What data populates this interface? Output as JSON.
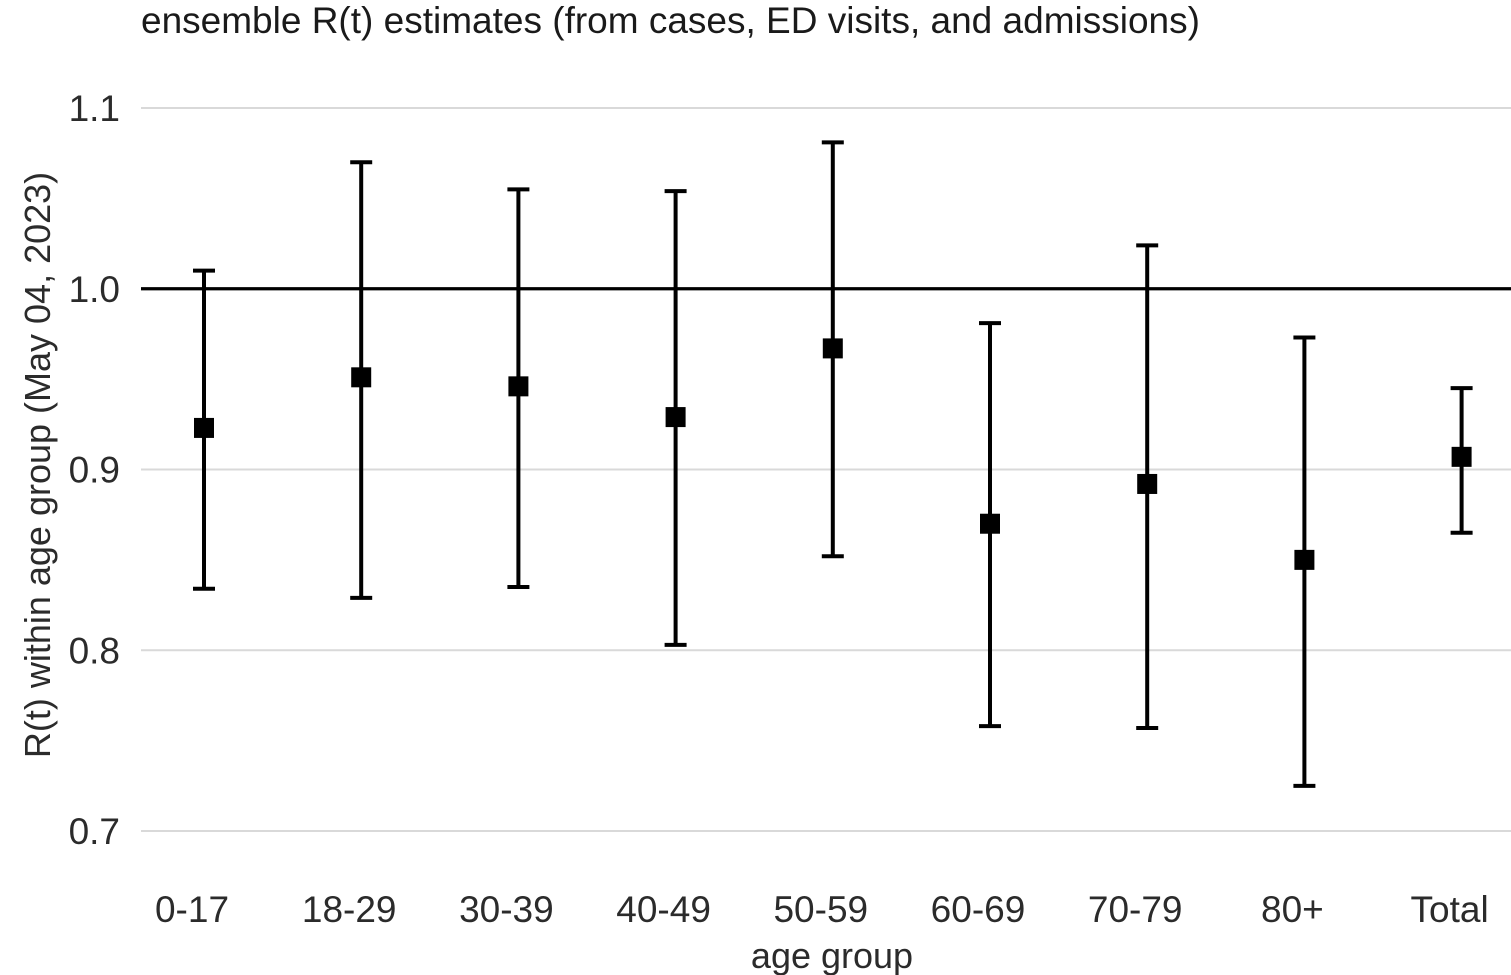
{
  "chart_data": {
    "type": "errorbar",
    "title": "ensemble R(t) estimates (from cases, ED visits, and admissions)",
    "xlabel": "age group",
    "ylabel": "R(t) within age group (May 04, 2023)",
    "categories": [
      "0-17",
      "18-29",
      "30-39",
      "40-49",
      "50-59",
      "60-69",
      "70-79",
      "80+",
      "Total"
    ],
    "values": [
      0.923,
      0.951,
      0.946,
      0.929,
      0.967,
      0.87,
      0.892,
      0.85,
      0.907
    ],
    "lower": [
      0.834,
      0.829,
      0.835,
      0.803,
      0.852,
      0.758,
      0.757,
      0.725,
      0.865
    ],
    "upper": [
      1.01,
      1.07,
      1.055,
      1.054,
      1.081,
      0.981,
      1.024,
      0.973,
      0.945
    ],
    "yticks": [
      0.7,
      0.8,
      0.9,
      1.0,
      1.1
    ],
    "ytick_labels": [
      "0.7",
      "0.8",
      "0.9",
      "1.0",
      "1.1"
    ],
    "ylim": [
      0.7,
      1.1
    ],
    "reference_line": 1.0,
    "grid": "horizontal",
    "colors": {
      "marker": "#000000",
      "grid": "#d9d9d9",
      "reference": "#000000",
      "text": "#2b2b2b"
    }
  }
}
